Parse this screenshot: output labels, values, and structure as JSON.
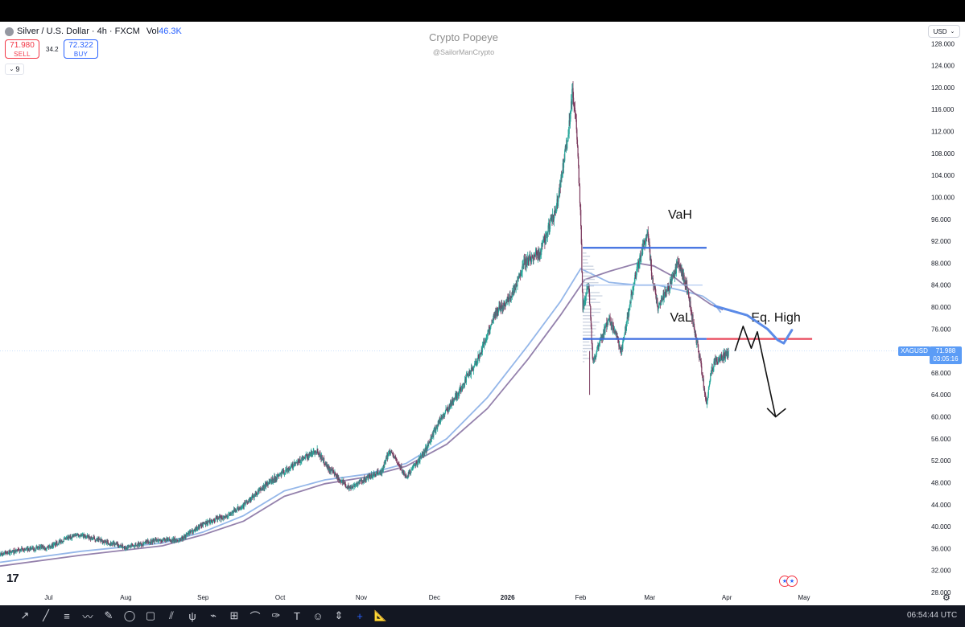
{
  "header": {
    "symbol_title": "Silver / U.S. Dollar · 4h · FXCM",
    "volume_label": "Vol",
    "volume_value": "46.3K",
    "sell_price": "71.980",
    "sell_label": "SELL",
    "spread": "34.2",
    "buy_price": "72.322",
    "buy_label": "BUY",
    "indicator_count": "9",
    "currency": "USD"
  },
  "watermark": {
    "name": "Crypto Popeye",
    "handle": "@SailorManCrypto"
  },
  "price_label": {
    "ticker": "XAGUSD",
    "price": "71.988",
    "countdown": "03:05:16"
  },
  "bottom": {
    "time": "06:54:44 UTC"
  },
  "colors": {
    "up": "#26a69a",
    "down": "#7c3a5e",
    "ma_fast": "#8fb3e8",
    "ma_slow": "#8e7aa8",
    "vah_val": "#3d6ee0",
    "eq_high": "#e8475a",
    "arrow": "#111111"
  },
  "icons": [
    "cursor-icon",
    "trend-line-icon",
    "fib-icon",
    "path-icon",
    "brush-icon",
    "circle-icon",
    "rect-icon",
    "channel-icon",
    "pitchfork-icon",
    "forecast-icon",
    "long-position-icon",
    "projection-icon",
    "pen-icon",
    "text-icon",
    "emoji-icon",
    "measure-icon",
    "crosshair-icon",
    "ruler-icon"
  ],
  "chart_data": {
    "type": "candlestick",
    "title": "Silver / U.S. Dollar · 4h · FXCM",
    "y_axis": {
      "ylim": [
        28,
        132
      ],
      "ticks": [
        "128.000",
        "124.000",
        "120.000",
        "116.000",
        "112.000",
        "108.000",
        "104.000",
        "100.000",
        "96.000",
        "92.000",
        "88.000",
        "84.000",
        "80.000",
        "76.000",
        "72.000",
        "68.000",
        "64.000",
        "60.000",
        "56.000",
        "52.000",
        "48.000",
        "44.000",
        "40.000",
        "36.000",
        "32.000",
        "28.000"
      ]
    },
    "x_axis": {
      "labels": [
        {
          "label": "Jul",
          "t": 1.2
        },
        {
          "label": "Aug",
          "t": 3.1
        },
        {
          "label": "Sep",
          "t": 5.0
        },
        {
          "label": "Oct",
          "t": 6.9
        },
        {
          "label": "Nov",
          "t": 8.9
        },
        {
          "label": "Dec",
          "t": 10.7
        },
        {
          "label": "2026",
          "t": 12.5
        },
        {
          "label": "Feb",
          "t": 14.3
        },
        {
          "label": "Mar",
          "t": 16.0
        },
        {
          "label": "Apr",
          "t": 17.9
        },
        {
          "label": "May",
          "t": 19.8
        }
      ],
      "range": [
        0,
        22
      ]
    },
    "price_anchors": [
      [
        0,
        35.0
      ],
      [
        0.6,
        35.8
      ],
      [
        1.2,
        36.3
      ],
      [
        1.9,
        38.6
      ],
      [
        2.6,
        37.2
      ],
      [
        3.1,
        36.2
      ],
      [
        3.8,
        37.5
      ],
      [
        4.4,
        37.5
      ],
      [
        5.0,
        40.5
      ],
      [
        5.6,
        42.0
      ],
      [
        6.1,
        44.5
      ],
      [
        6.6,
        48.0
      ],
      [
        7.3,
        51.5
      ],
      [
        7.8,
        54.0
      ],
      [
        8.1,
        50.5
      ],
      [
        8.6,
        47.0
      ],
      [
        8.95,
        48.5
      ],
      [
        9.4,
        50.0
      ],
      [
        9.6,
        54.0
      ],
      [
        10.0,
        49.0
      ],
      [
        10.45,
        53.5
      ],
      [
        10.8,
        59.0
      ],
      [
        11.3,
        64.5
      ],
      [
        11.8,
        71.0
      ],
      [
        12.2,
        79.0
      ],
      [
        12.6,
        82.0
      ],
      [
        12.9,
        88.0
      ],
      [
        13.3,
        90.0
      ],
      [
        13.7,
        98.0
      ],
      [
        14.0,
        112.0
      ],
      [
        14.1,
        120.0
      ],
      [
        14.2,
        112.0
      ],
      [
        14.3,
        96.0
      ],
      [
        14.35,
        80.0
      ],
      [
        14.5,
        84.0
      ],
      [
        14.6,
        70.0
      ],
      [
        14.8,
        74.0
      ],
      [
        15.0,
        78.0
      ],
      [
        15.3,
        72.0
      ],
      [
        15.6,
        84.0
      ],
      [
        15.8,
        90.0
      ],
      [
        15.95,
        94.0
      ],
      [
        16.05,
        86.0
      ],
      [
        16.2,
        80.0
      ],
      [
        16.5,
        84.0
      ],
      [
        16.7,
        88.0
      ],
      [
        16.9,
        84.0
      ],
      [
        17.1,
        76.0
      ],
      [
        17.25,
        70.0
      ],
      [
        17.4,
        62.0
      ],
      [
        17.5,
        68.0
      ],
      [
        17.6,
        70.0
      ],
      [
        17.85,
        71.2
      ],
      [
        17.95,
        71.9
      ]
    ],
    "moving_averages": [
      {
        "name": "MA fast",
        "color": "#8fb3e8",
        "points": [
          [
            0,
            33.5
          ],
          [
            2,
            35.5
          ],
          [
            4,
            37.0
          ],
          [
            5,
            39.0
          ],
          [
            6,
            42.0
          ],
          [
            7,
            46.5
          ],
          [
            8,
            48.5
          ],
          [
            9,
            49.5
          ],
          [
            10,
            51.5
          ],
          [
            11,
            56.0
          ],
          [
            12,
            63.5
          ],
          [
            13,
            73.0
          ],
          [
            13.8,
            81.0
          ],
          [
            14.3,
            87.0
          ],
          [
            15.0,
            84.5
          ],
          [
            15.7,
            84.0
          ],
          [
            16.2,
            84.0
          ],
          [
            16.8,
            83.0
          ],
          [
            17.3,
            82.0
          ],
          [
            17.6,
            80.5
          ],
          [
            17.75,
            79.0
          ]
        ]
      },
      {
        "name": "MA slow",
        "color": "#8e7aa8",
        "points": [
          [
            0,
            32.8
          ],
          [
            2,
            34.8
          ],
          [
            4,
            36.5
          ],
          [
            5,
            38.5
          ],
          [
            6,
            41.0
          ],
          [
            7,
            45.5
          ],
          [
            8,
            47.8
          ],
          [
            9,
            49.0
          ],
          [
            10,
            51.0
          ],
          [
            11,
            55.0
          ],
          [
            12,
            61.5
          ],
          [
            13,
            70.5
          ],
          [
            13.8,
            78.5
          ],
          [
            14.4,
            85.0
          ],
          [
            15.0,
            86.5
          ],
          [
            15.7,
            88.0
          ],
          [
            16.1,
            87.5
          ],
          [
            16.6,
            85.5
          ],
          [
            17.1,
            82.5
          ],
          [
            17.5,
            80.5
          ],
          [
            17.8,
            79.5
          ]
        ]
      }
    ],
    "volume_profile": {
      "price_range": [
        70,
        90
      ],
      "start_t": 14.35,
      "max_width_t": 0.6
    },
    "annotations": [
      {
        "type": "hline",
        "label": "VaH",
        "price": 90.8,
        "t_start": 14.35,
        "t_end": 17.4,
        "color": "#3d6ee0"
      },
      {
        "type": "hline",
        "label": "VaL",
        "price": 74.2,
        "t_start": 14.35,
        "t_end": 17.4,
        "color": "#3d6ee0"
      },
      {
        "type": "hline",
        "label": "Eq. High",
        "price": 74.2,
        "t_start": 17.4,
        "t_end": 20.0,
        "color": "#e8475a"
      },
      {
        "type": "hline",
        "label": "",
        "price": 84.0,
        "t_start": 14.35,
        "t_end": 17.3,
        "color": "#aac4f0"
      }
    ],
    "drawn_path": {
      "points": [
        [
          18.1,
          72.0
        ],
        [
          18.3,
          76.5
        ],
        [
          18.5,
          72.5
        ],
        [
          18.65,
          75.5
        ],
        [
          19.1,
          60.0
        ],
        [
          18.9,
          61.5
        ],
        [
          19.1,
          60.0
        ],
        [
          19.35,
          61.5
        ]
      ],
      "color": "#111111"
    },
    "curve_path": {
      "points": [
        [
          17.6,
          80.2
        ],
        [
          18.4,
          78.5
        ],
        [
          18.9,
          76.0
        ],
        [
          19.15,
          74.0
        ],
        [
          19.3,
          73.4
        ],
        [
          19.5,
          75.8
        ]
      ],
      "color": "#5b8be8"
    },
    "last_price": 71.988
  }
}
